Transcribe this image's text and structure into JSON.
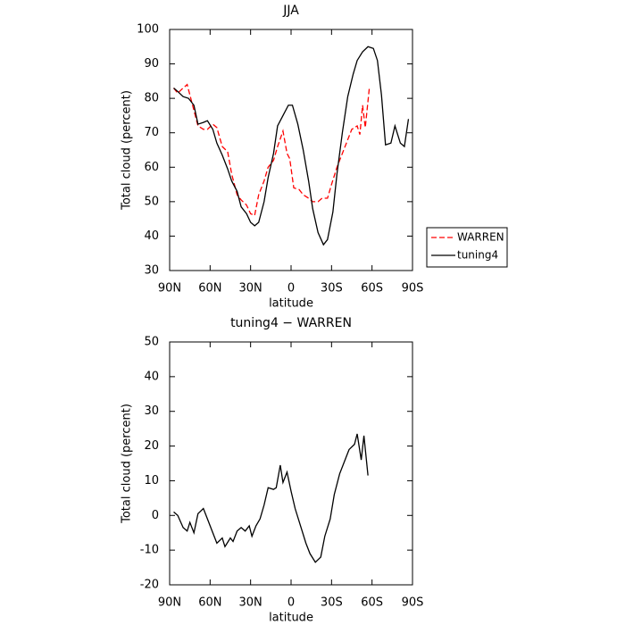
{
  "chart_data": [
    {
      "type": "line",
      "title": "JJA",
      "xlabel": "latitude",
      "ylabel": "Total cloud (percent)",
      "xlim": [
        90,
        -90
      ],
      "xticks": [
        {
          "value": 90,
          "label": "90N"
        },
        {
          "value": 60,
          "label": "60N"
        },
        {
          "value": 30,
          "label": "30N"
        },
        0,
        {
          "value": -30,
          "label": "30S"
        },
        {
          "value": -60,
          "label": "60S"
        },
        {
          "value": -90,
          "label": "90S"
        }
      ],
      "ylim": [
        30,
        100
      ],
      "yticks": [
        30,
        40,
        50,
        60,
        70,
        80,
        90,
        100
      ],
      "legend": "right",
      "series": [
        {
          "name": "WARREN",
          "color": "#ff0000",
          "style": "dashed",
          "x": [
            87,
            84,
            80,
            77,
            73,
            69,
            65,
            62,
            58,
            55,
            51,
            47,
            44,
            40,
            37,
            33,
            30,
            27,
            24,
            20,
            17,
            13,
            10,
            6,
            3,
            1,
            -2,
            -6,
            -9,
            -13,
            -16,
            -20,
            -23,
            -27,
            -30,
            -34,
            -38,
            -42,
            -45,
            -49,
            -51,
            -53,
            -55,
            -58
          ],
          "values": [
            83,
            81.5,
            83,
            84,
            78,
            72,
            71,
            71,
            72.5,
            71.5,
            66,
            64.5,
            58,
            52,
            50.5,
            49,
            46.5,
            46,
            52,
            56,
            60,
            62,
            66,
            70.5,
            64,
            62.5,
            54,
            53.5,
            52,
            51,
            50,
            50,
            51,
            51,
            55,
            60,
            64,
            68,
            71,
            72,
            69.5,
            78,
            71.5,
            83
          ]
        },
        {
          "name": "tuning4",
          "color": "#000000",
          "style": "solid",
          "x": [
            87,
            84,
            80,
            76,
            72,
            69,
            65,
            62,
            58,
            55,
            51,
            47,
            44,
            40,
            37,
            33,
            30,
            27,
            24,
            20,
            17,
            13,
            10,
            6,
            2,
            -1,
            -5,
            -9,
            -13,
            -16,
            -20,
            -24,
            -27,
            -31,
            -34,
            -38,
            -42,
            -46,
            -49,
            -53,
            -57,
            -61,
            -64,
            -67,
            -70,
            -74,
            -77,
            -81,
            -84,
            -87
          ],
          "values": [
            83,
            82,
            80.5,
            80,
            78,
            72.5,
            73,
            73.5,
            71,
            67,
            63.5,
            59.5,
            56,
            53,
            48.5,
            46.5,
            44,
            43,
            44,
            50,
            57,
            64,
            72,
            75,
            78,
            78,
            72.5,
            65,
            56,
            48,
            41,
            37.5,
            39,
            47,
            58,
            70,
            80.5,
            87,
            91,
            93.5,
            95,
            94.5,
            91,
            81,
            66.5,
            67,
            72,
            67,
            66,
            74
          ]
        }
      ]
    },
    {
      "type": "line",
      "title": "tuning4 − WARREN",
      "xlabel": "latitude",
      "ylabel": "Total cloud (percent)",
      "xlim": [
        90,
        -90
      ],
      "xticks": [
        {
          "value": 90,
          "label": "90N"
        },
        {
          "value": 60,
          "label": "60N"
        },
        {
          "value": 30,
          "label": "30N"
        },
        0,
        {
          "value": -30,
          "label": "30S"
        },
        {
          "value": -60,
          "label": "60S"
        },
        {
          "value": -90,
          "label": "90S"
        }
      ],
      "ylim": [
        -20,
        50
      ],
      "yticks": [
        -20,
        -10,
        0,
        10,
        20,
        30,
        40,
        50
      ],
      "series": [
        {
          "color": "#000000",
          "style": "solid",
          "x": [
            87,
            84,
            80,
            77,
            75,
            72,
            69,
            65,
            62,
            58,
            55,
            51,
            49,
            45,
            43,
            40,
            37,
            34,
            31,
            29,
            26,
            23,
            20,
            17,
            13,
            11,
            8,
            6,
            3,
            0,
            -3,
            -7,
            -11,
            -14,
            -18,
            -22,
            -25,
            -29,
            -32,
            -36,
            -40,
            -43,
            -47,
            -49,
            -52,
            -54,
            -57
          ],
          "values": [
            1,
            0,
            -3.5,
            -4.5,
            -2,
            -5,
            0.5,
            2,
            -1,
            -5,
            -8,
            -6.5,
            -9,
            -6.5,
            -7.5,
            -4.5,
            -3.5,
            -4.5,
            -3,
            -6,
            -3,
            -1,
            3,
            8,
            7.5,
            8,
            14.5,
            9.5,
            12.5,
            7,
            2,
            -3,
            -8,
            -11,
            -13.5,
            -12,
            -6,
            -1,
            6,
            12,
            16,
            19,
            20.5,
            23.5,
            16,
            23,
            11.5
          ]
        }
      ]
    }
  ]
}
